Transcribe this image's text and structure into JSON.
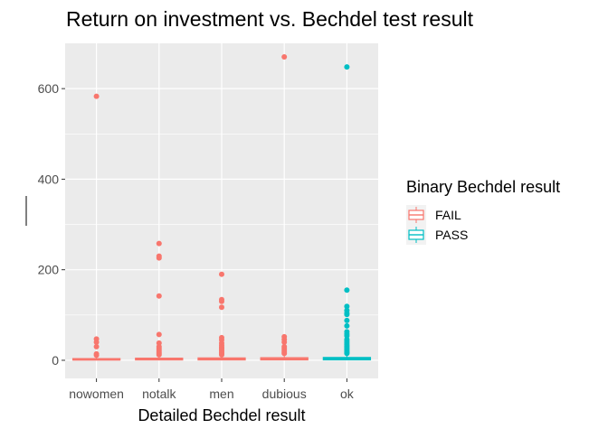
{
  "chart_data": {
    "type": "box",
    "title": "Return on investment vs. Bechdel test result",
    "xlabel": "Detailed Bechdel result",
    "ylabel": "",
    "ylim": [
      -40,
      700
    ],
    "yticks": [
      0,
      200,
      400,
      600
    ],
    "categories": [
      "nowomen",
      "notalk",
      "men",
      "dubious",
      "ok"
    ],
    "grid": true,
    "legend": {
      "title": "Binary Bechdel result",
      "placement": "right",
      "entries": [
        {
          "label": "FAIL",
          "color": "#F8766D"
        },
        {
          "label": "PASS",
          "color": "#00BFC4"
        }
      ]
    },
    "boxes": [
      {
        "category": "nowomen",
        "group": "FAIL",
        "color": "#F8766D",
        "q1": 0.8,
        "median": 1.8,
        "q3": 3.5,
        "whisker_low": 0,
        "whisker_high": 8,
        "outliers": [
          583,
          47,
          40,
          30,
          14,
          11
        ]
      },
      {
        "category": "notalk",
        "group": "FAIL",
        "color": "#F8766D",
        "q1": 1.0,
        "median": 2.2,
        "q3": 4.5,
        "whisker_low": 0,
        "whisker_high": 10,
        "outliers": [
          258,
          230,
          226,
          142,
          57,
          38,
          30,
          26,
          22,
          18,
          15,
          12
        ]
      },
      {
        "category": "men",
        "group": "FAIL",
        "color": "#F8766D",
        "q1": 1.0,
        "median": 2.4,
        "q3": 5.0,
        "whisker_low": 0,
        "whisker_high": 11,
        "outliers": [
          190,
          134,
          130,
          117,
          50,
          45,
          38,
          33,
          29,
          26,
          23,
          20,
          17,
          14,
          12
        ]
      },
      {
        "category": "dubious",
        "group": "FAIL",
        "color": "#F8766D",
        "q1": 1.1,
        "median": 2.5,
        "q3": 5.5,
        "whisker_low": 0,
        "whisker_high": 12,
        "outliers": [
          670,
          52,
          46,
          40,
          30,
          26,
          22,
          18,
          15
        ]
      },
      {
        "category": "ok",
        "group": "PASS",
        "color": "#00BFC4",
        "q1": 1.2,
        "median": 2.8,
        "q3": 6.0,
        "whisker_low": 0,
        "whisker_high": 14,
        "outliers": [
          648,
          155,
          119,
          110,
          104,
          101,
          88,
          76,
          63,
          58,
          54,
          46,
          42,
          38,
          34,
          31,
          28,
          25,
          22,
          19,
          17,
          15
        ]
      }
    ]
  }
}
